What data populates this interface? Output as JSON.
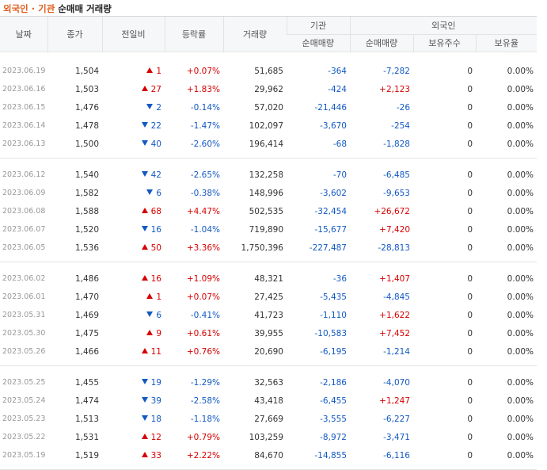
{
  "title": {
    "part1": "외국인 · 기관",
    "part2": "순매매 거래량"
  },
  "headers": {
    "date": "날짜",
    "close": "종가",
    "change": "전일비",
    "rate": "등락률",
    "volume": "거래량",
    "institution": "기관",
    "foreign": "외국인",
    "inst_net": "순매매량",
    "frg_net": "순매매량",
    "frg_hold": "보유주수",
    "frg_pct": "보유율"
  },
  "groups": [
    [
      {
        "date": "2023.06.19",
        "close": "1,504",
        "dir": "up",
        "change": "1",
        "rate": "+0.07%",
        "volume": "51,685",
        "inst": "-364",
        "frg": "-7,282",
        "hold": "0",
        "pct": "0.00%"
      },
      {
        "date": "2023.06.16",
        "close": "1,503",
        "dir": "up",
        "change": "27",
        "rate": "+1.83%",
        "volume": "29,962",
        "inst": "-424",
        "frg": "+2,123",
        "hold": "0",
        "pct": "0.00%"
      },
      {
        "date": "2023.06.15",
        "close": "1,476",
        "dir": "down",
        "change": "2",
        "rate": "-0.14%",
        "volume": "57,020",
        "inst": "-21,446",
        "frg": "-26",
        "hold": "0",
        "pct": "0.00%"
      },
      {
        "date": "2023.06.14",
        "close": "1,478",
        "dir": "down",
        "change": "22",
        "rate": "-1.47%",
        "volume": "102,097",
        "inst": "-3,670",
        "frg": "-254",
        "hold": "0",
        "pct": "0.00%"
      },
      {
        "date": "2023.06.13",
        "close": "1,500",
        "dir": "down",
        "change": "40",
        "rate": "-2.60%",
        "volume": "196,414",
        "inst": "-68",
        "frg": "-1,828",
        "hold": "0",
        "pct": "0.00%"
      }
    ],
    [
      {
        "date": "2023.06.12",
        "close": "1,540",
        "dir": "down",
        "change": "42",
        "rate": "-2.65%",
        "volume": "132,258",
        "inst": "-70",
        "frg": "-6,485",
        "hold": "0",
        "pct": "0.00%"
      },
      {
        "date": "2023.06.09",
        "close": "1,582",
        "dir": "down",
        "change": "6",
        "rate": "-0.38%",
        "volume": "148,996",
        "inst": "-3,602",
        "frg": "-9,653",
        "hold": "0",
        "pct": "0.00%"
      },
      {
        "date": "2023.06.08",
        "close": "1,588",
        "dir": "up",
        "change": "68",
        "rate": "+4.47%",
        "volume": "502,535",
        "inst": "-32,454",
        "frg": "+26,672",
        "hold": "0",
        "pct": "0.00%"
      },
      {
        "date": "2023.06.07",
        "close": "1,520",
        "dir": "down",
        "change": "16",
        "rate": "-1.04%",
        "volume": "719,890",
        "inst": "-15,677",
        "frg": "+7,420",
        "hold": "0",
        "pct": "0.00%"
      },
      {
        "date": "2023.06.05",
        "close": "1,536",
        "dir": "up",
        "change": "50",
        "rate": "+3.36%",
        "volume": "1,750,396",
        "inst": "-227,487",
        "frg": "-28,813",
        "hold": "0",
        "pct": "0.00%"
      }
    ],
    [
      {
        "date": "2023.06.02",
        "close": "1,486",
        "dir": "up",
        "change": "16",
        "rate": "+1.09%",
        "volume": "48,321",
        "inst": "-36",
        "frg": "+1,407",
        "hold": "0",
        "pct": "0.00%"
      },
      {
        "date": "2023.06.01",
        "close": "1,470",
        "dir": "up",
        "change": "1",
        "rate": "+0.07%",
        "volume": "27,425",
        "inst": "-5,435",
        "frg": "-4,845",
        "hold": "0",
        "pct": "0.00%"
      },
      {
        "date": "2023.05.31",
        "close": "1,469",
        "dir": "down",
        "change": "6",
        "rate": "-0.41%",
        "volume": "41,723",
        "inst": "-1,110",
        "frg": "+1,622",
        "hold": "0",
        "pct": "0.00%"
      },
      {
        "date": "2023.05.30",
        "close": "1,475",
        "dir": "up",
        "change": "9",
        "rate": "+0.61%",
        "volume": "39,955",
        "inst": "-10,583",
        "frg": "+7,452",
        "hold": "0",
        "pct": "0.00%"
      },
      {
        "date": "2023.05.26",
        "close": "1,466",
        "dir": "up",
        "change": "11",
        "rate": "+0.76%",
        "volume": "20,690",
        "inst": "-6,195",
        "frg": "-1,214",
        "hold": "0",
        "pct": "0.00%"
      }
    ],
    [
      {
        "date": "2023.05.25",
        "close": "1,455",
        "dir": "down",
        "change": "19",
        "rate": "-1.29%",
        "volume": "32,563",
        "inst": "-2,186",
        "frg": "-4,070",
        "hold": "0",
        "pct": "0.00%"
      },
      {
        "date": "2023.05.24",
        "close": "1,474",
        "dir": "down",
        "change": "39",
        "rate": "-2.58%",
        "volume": "43,418",
        "inst": "-6,455",
        "frg": "+1,247",
        "hold": "0",
        "pct": "0.00%"
      },
      {
        "date": "2023.05.23",
        "close": "1,513",
        "dir": "down",
        "change": "18",
        "rate": "-1.18%",
        "volume": "27,669",
        "inst": "-3,555",
        "frg": "-6,227",
        "hold": "0",
        "pct": "0.00%"
      },
      {
        "date": "2023.05.22",
        "close": "1,531",
        "dir": "up",
        "change": "12",
        "rate": "+0.79%",
        "volume": "103,259",
        "inst": "-8,972",
        "frg": "-3,471",
        "hold": "0",
        "pct": "0.00%"
      },
      {
        "date": "2023.05.19",
        "close": "1,519",
        "dir": "up",
        "change": "33",
        "rate": "+2.22%",
        "volume": "84,670",
        "inst": "-14,855",
        "frg": "-6,116",
        "hold": "0",
        "pct": "0.00%"
      }
    ]
  ]
}
